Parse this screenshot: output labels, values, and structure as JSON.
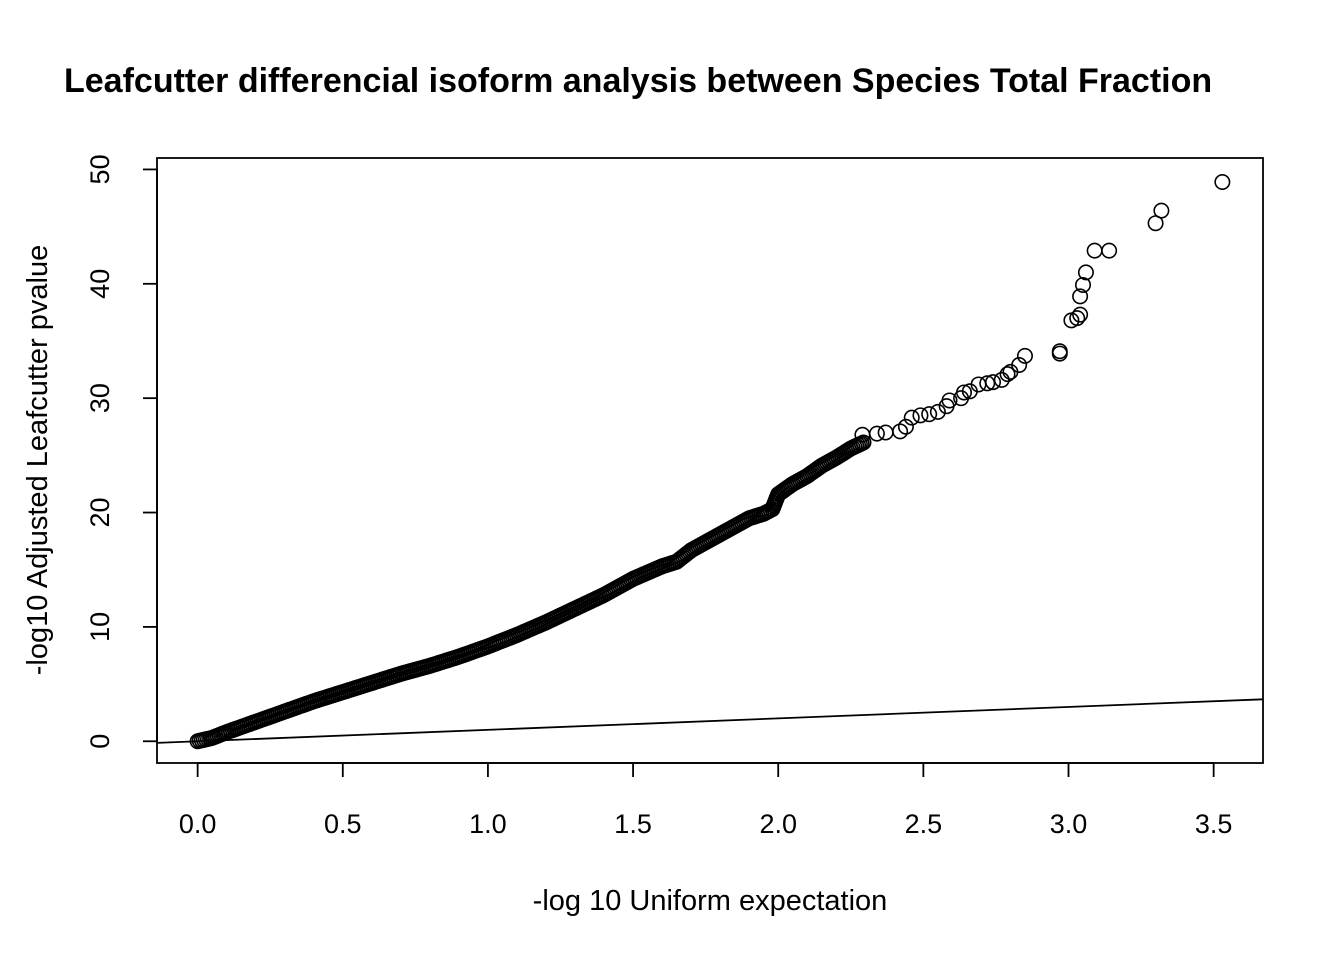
{
  "chart_data": {
    "type": "scatter",
    "title": "Leafcutter differencial isoform analysis between Species Total Fraction",
    "xlabel": "-log 10 Uniform expectation",
    "ylabel": "-log10 Adjusted Leafcutter pvalue",
    "xlim": [
      -0.14,
      3.67
    ],
    "ylim": [
      -1.9,
      51
    ],
    "x_ticks": [
      0.0,
      0.5,
      1.0,
      1.5,
      2.0,
      2.5,
      3.0,
      3.5
    ],
    "x_tick_labels": [
      "0.0",
      "0.5",
      "1.0",
      "1.5",
      "2.0",
      "2.5",
      "3.0",
      "3.5"
    ],
    "y_ticks": [
      0,
      10,
      20,
      30,
      40,
      50
    ],
    "y_tick_labels": [
      "0",
      "10",
      "20",
      "30",
      "40",
      "50"
    ],
    "grid": false,
    "reference_line": {
      "intercept": 0,
      "slope": 1
    },
    "curve_points": [
      [
        0.0,
        0.0
      ],
      [
        0.05,
        0.3
      ],
      [
        0.1,
        0.8
      ],
      [
        0.2,
        1.7
      ],
      [
        0.3,
        2.6
      ],
      [
        0.4,
        3.5
      ],
      [
        0.5,
        4.3
      ],
      [
        0.6,
        5.1
      ],
      [
        0.7,
        5.9
      ],
      [
        0.8,
        6.6
      ],
      [
        0.9,
        7.4
      ],
      [
        1.0,
        8.3
      ],
      [
        1.1,
        9.3
      ],
      [
        1.2,
        10.4
      ],
      [
        1.3,
        11.6
      ],
      [
        1.4,
        12.8
      ],
      [
        1.5,
        14.2
      ],
      [
        1.6,
        15.3
      ],
      [
        1.65,
        15.7
      ],
      [
        1.7,
        16.7
      ],
      [
        1.8,
        18.1
      ],
      [
        1.85,
        18.8
      ],
      [
        1.9,
        19.5
      ],
      [
        1.95,
        19.9
      ],
      [
        1.98,
        20.3
      ],
      [
        2.0,
        21.6
      ],
      [
        2.05,
        22.5
      ],
      [
        2.1,
        23.2
      ],
      [
        2.15,
        24.1
      ],
      [
        2.2,
        24.8
      ],
      [
        2.25,
        25.6
      ],
      [
        2.3,
        26.2
      ]
    ],
    "sparse_points": [
      [
        2.29,
        26.8
      ],
      [
        2.34,
        26.9
      ],
      [
        2.37,
        27.0
      ],
      [
        2.42,
        27.1
      ],
      [
        2.44,
        27.5
      ],
      [
        2.46,
        28.3
      ],
      [
        2.49,
        28.5
      ],
      [
        2.52,
        28.6
      ],
      [
        2.55,
        28.8
      ],
      [
        2.58,
        29.3
      ],
      [
        2.59,
        29.8
      ],
      [
        2.63,
        30.0
      ],
      [
        2.64,
        30.5
      ],
      [
        2.66,
        30.6
      ],
      [
        2.69,
        31.2
      ],
      [
        2.72,
        31.3
      ],
      [
        2.74,
        31.4
      ],
      [
        2.77,
        31.6
      ],
      [
        2.79,
        32.1
      ],
      [
        2.8,
        32.3
      ],
      [
        2.83,
        32.9
      ],
      [
        2.85,
        33.7
      ],
      [
        2.97,
        33.9
      ],
      [
        2.97,
        34.1
      ],
      [
        3.01,
        36.8
      ],
      [
        3.03,
        37.0
      ],
      [
        3.04,
        37.3
      ],
      [
        3.04,
        38.9
      ],
      [
        3.05,
        39.9
      ],
      [
        3.06,
        41.0
      ],
      [
        3.09,
        42.9
      ],
      [
        3.14,
        42.9
      ],
      [
        3.3,
        45.3
      ],
      [
        3.32,
        46.4
      ],
      [
        3.53,
        48.9
      ]
    ]
  }
}
